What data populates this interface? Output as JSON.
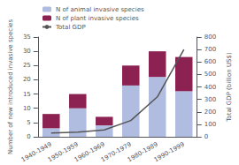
{
  "chart_data": {
    "type": "bar",
    "stacked": true,
    "categories": [
      "1940-1949",
      "1950-1959",
      "1960-1969",
      "1970-1979",
      "1980-1989",
      "1990-1999"
    ],
    "series": [
      {
        "name": "N of animal invasive species",
        "color": "#b0bce0",
        "values": [
          3,
          10,
          4,
          18,
          21,
          16
        ]
      },
      {
        "name": "N of plant invasive species",
        "color": "#8b2252",
        "values": [
          5,
          5,
          3,
          7,
          9,
          12
        ]
      },
      {
        "name": "Total GDP",
        "type": "line",
        "axis": "y2",
        "color": "#555555",
        "values": [
          30,
          38,
          55,
          130,
          320,
          700
        ]
      }
    ],
    "ylabel": "Number of new introduced invasive species",
    "y2label": "Total GDP (billion US$)",
    "ylim": [
      0,
      35
    ],
    "yticks": [
      0,
      5,
      10,
      15,
      20,
      25,
      30,
      35
    ],
    "y2lim": [
      0,
      800
    ],
    "y2ticks": [
      0,
      100,
      200,
      300,
      400,
      500,
      600,
      700,
      800
    ],
    "grid": false,
    "legend": "upper left"
  }
}
